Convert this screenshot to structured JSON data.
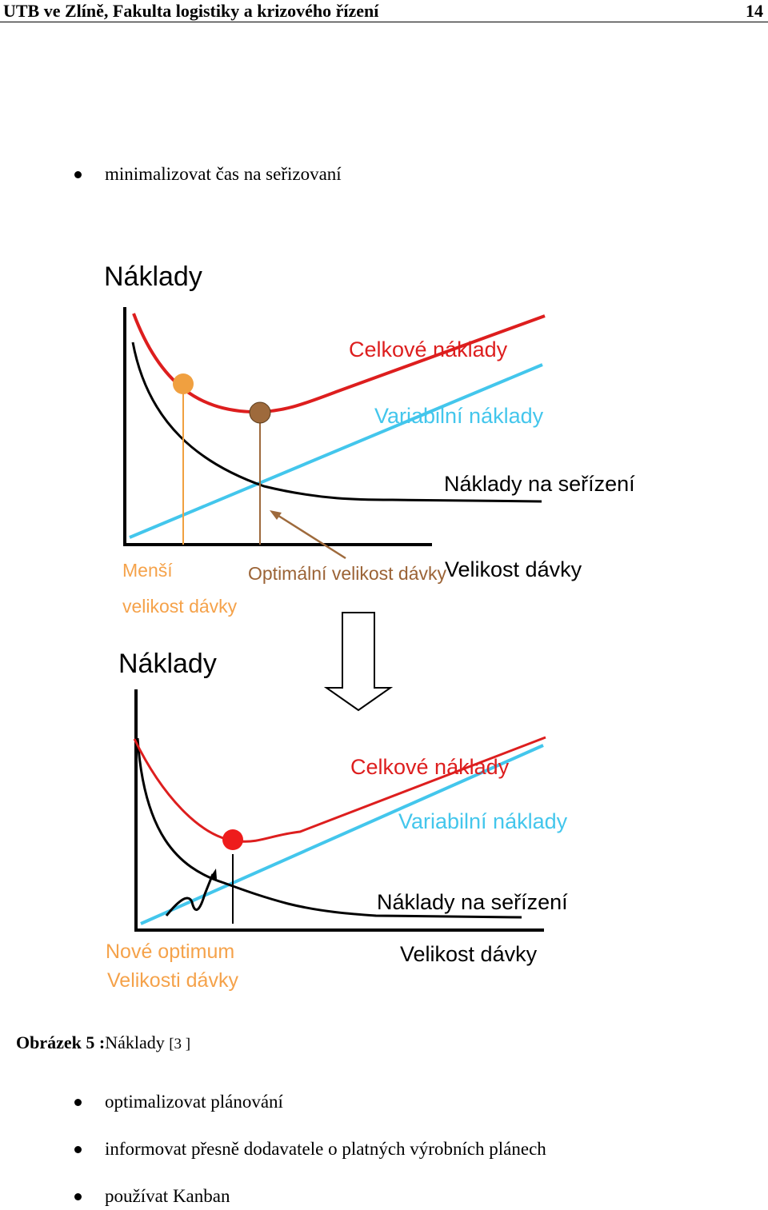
{
  "header": {
    "title": "UTB ve Zlíně, Fakulta logistiky a krizového řízení",
    "page_number": "14"
  },
  "bullets_top": [
    "minimalizovat čas na seřizovaní"
  ],
  "figure": {
    "top": {
      "y_label": "Náklady",
      "total_costs": "Celkové náklady",
      "variable_costs": "Variabilní náklady",
      "setup_costs": "Náklady na seřízení",
      "smaller_line1": "Menší",
      "smaller_line2": "velikost dávky",
      "optimal_label": "Optimální velikost dávky",
      "x_label": "Velikost dávky"
    },
    "bottom": {
      "y_label": "Náklady",
      "total_costs": "Celkové náklady",
      "variable_costs": "Variabilní náklady",
      "setup_costs": "Náklady na seřízení",
      "new_opt_line1": "Nové optimum",
      "new_opt_line2": "Velikosti dávky",
      "x_label": "Velikost dávky"
    },
    "colors": {
      "total": "#dd1e1e",
      "variable": "#43c6ec",
      "setup": "#000000",
      "orange": "#f0a040",
      "brown": "#9e6a3c",
      "orange_text": "#f5a24a",
      "brown_text": "#9b6336"
    }
  },
  "caption": {
    "label": "Obrázek 5 :",
    "text": "Náklady",
    "ref": "[3 ]"
  },
  "bullets_bottom": [
    "optimalizovat plánování",
    "informovat přesně dodavatele o platných výrobních plánech",
    "používat  Kanban"
  ]
}
